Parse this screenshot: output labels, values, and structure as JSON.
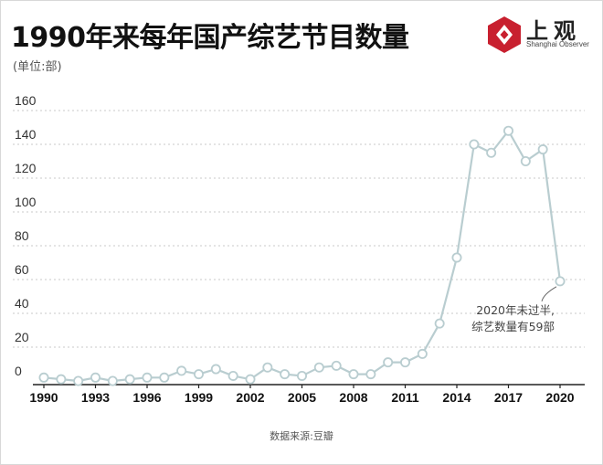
{
  "header": {
    "title": "1990年来每年国产综艺节目数量",
    "unit": "(单位:部)"
  },
  "brand": {
    "name": "上观",
    "subtitle": "Shanghai Observer",
    "color": "#c8202f"
  },
  "footer": {
    "source": "数据来源:豆瓣"
  },
  "colors": {
    "line": "#b9cdd0",
    "marker_stroke": "#b9cdd0",
    "marker_fill": "#ffffff",
    "grid": "#c9c9c9",
    "axis": "#222222"
  },
  "chart_data": {
    "type": "line",
    "title": "1990年来每年国产综艺节目数量",
    "ylabel": "(单位:部)",
    "xlabel": "",
    "ylim": [
      0,
      160
    ],
    "yticks": [
      "0",
      "20",
      "40",
      "60",
      "80",
      "100",
      "120",
      "140",
      "160"
    ],
    "xticks": [
      "1990",
      "1993",
      "1996",
      "1999",
      "2002",
      "2005",
      "2008",
      "2011",
      "2014",
      "2017",
      "2020"
    ],
    "grid": "horizontal dashed",
    "x": [
      1990,
      1991,
      1992,
      1993,
      1994,
      1995,
      1996,
      1997,
      1998,
      1999,
      2000,
      2001,
      2002,
      2003,
      2004,
      2005,
      2006,
      2007,
      2008,
      2009,
      2010,
      2011,
      2012,
      2013,
      2014,
      2015,
      2016,
      2017,
      2018,
      2019,
      2020
    ],
    "values": [
      2,
      1,
      0,
      2,
      0,
      1,
      2,
      2,
      6,
      4,
      7,
      3,
      1,
      8,
      4,
      3,
      8,
      9,
      4,
      4,
      11,
      11,
      16,
      34,
      73,
      140,
      135,
      148,
      130,
      137,
      59
    ],
    "annotation": {
      "lines": [
        "2020年未过半,",
        "综艺数量有59部"
      ],
      "x": 2020,
      "y": 59
    }
  }
}
